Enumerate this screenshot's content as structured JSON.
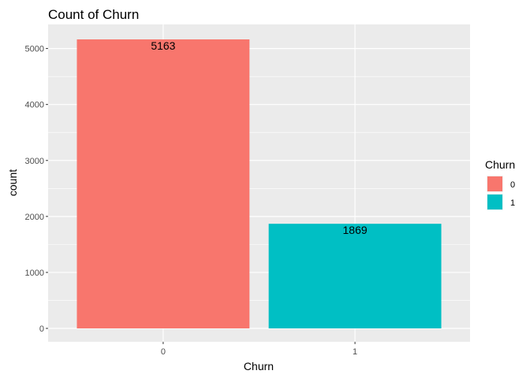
{
  "chart_data": {
    "type": "bar",
    "title": "Count of Churn",
    "xlabel": "Churn",
    "ylabel": "count",
    "categories": [
      "0",
      "1"
    ],
    "values": [
      5163,
      1869
    ],
    "data_labels": [
      "5163",
      "1869"
    ],
    "ylim": [
      0,
      5430
    ],
    "yticks": [
      0,
      1000,
      2000,
      3000,
      4000,
      5000
    ],
    "ytick_labels": [
      "0",
      "1000",
      "2000",
      "3000",
      "4000",
      "5000"
    ],
    "grid": true,
    "panel_background": "#ebebeb",
    "gridline_color": "#ffffff",
    "colors": [
      "#f8766d",
      "#00bfc4"
    ],
    "legend": {
      "title": "Churn",
      "position": "right",
      "entries": [
        "0",
        "1"
      ]
    }
  }
}
